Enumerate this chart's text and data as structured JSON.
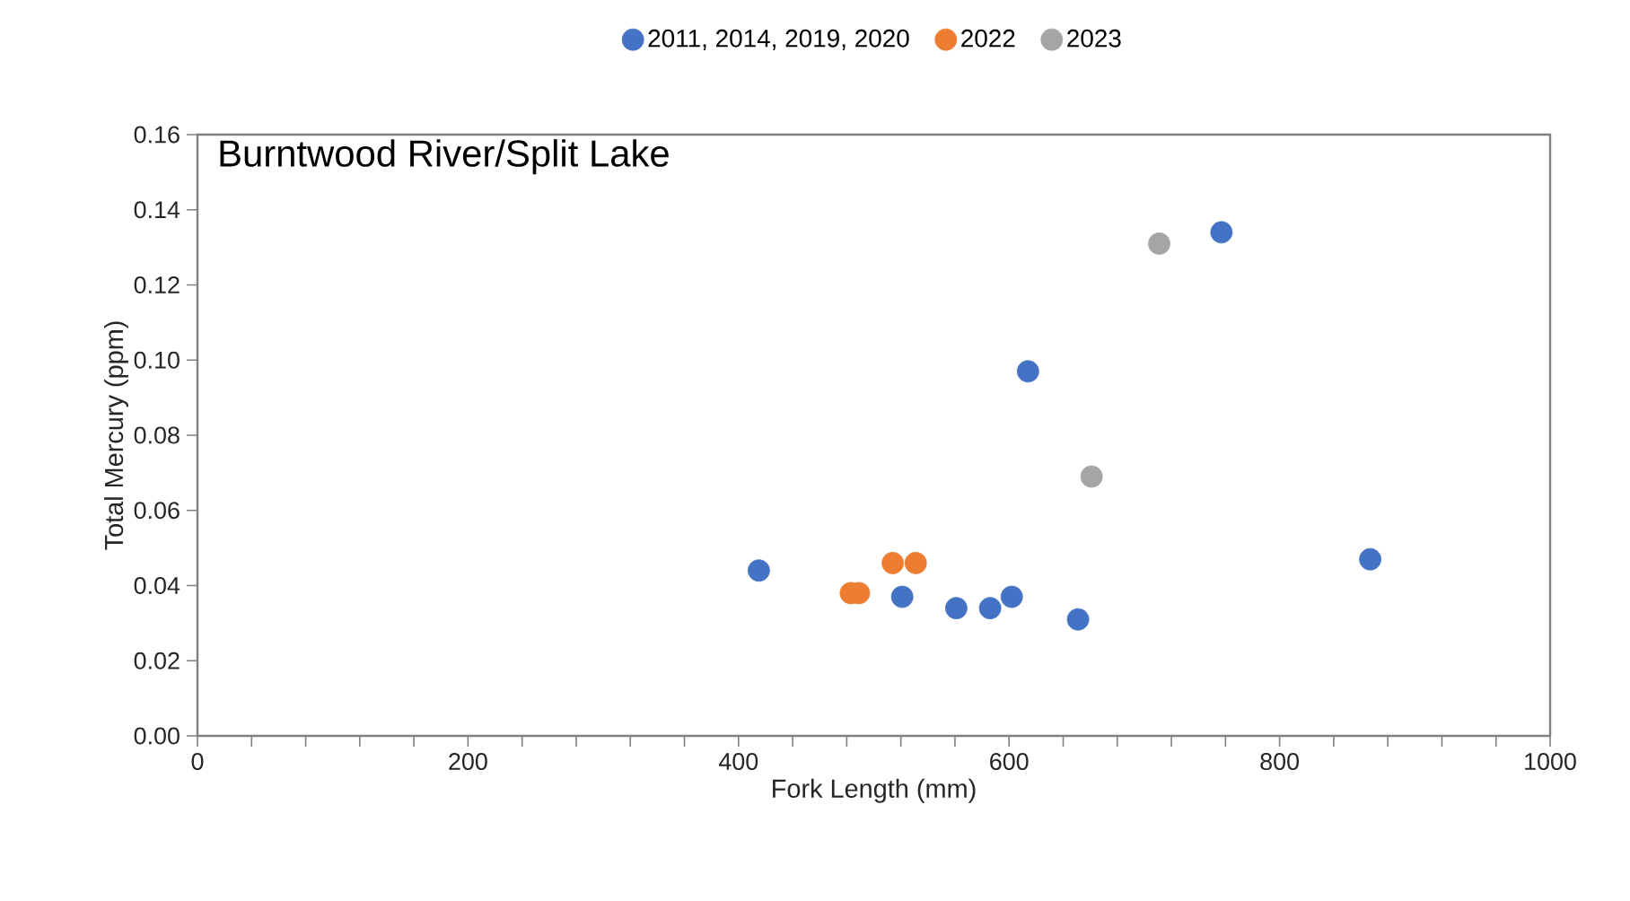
{
  "chart_data": {
    "type": "scatter",
    "title": "Burntwood River/Split Lake",
    "xlabel": "Fork Length (mm)",
    "ylabel": "Total Mercury (ppm)",
    "xlim": [
      0,
      1000
    ],
    "xticks": [
      0,
      200,
      400,
      600,
      800,
      1000
    ],
    "ylim": [
      0,
      0.16
    ],
    "yticks": [
      {
        "value": 0,
        "label": "0.00"
      },
      {
        "value": 0.02,
        "label": "0.02"
      },
      {
        "value": 0.04,
        "label": "0.04"
      },
      {
        "value": 0.06,
        "label": "0.06"
      },
      {
        "value": 0.08,
        "label": "0.08"
      },
      {
        "value": 0.1,
        "label": "0.10"
      },
      {
        "value": 0.12,
        "label": "0.12"
      },
      {
        "value": 0.14,
        "label": "0.14"
      },
      {
        "value": 0.16,
        "label": "0.16"
      }
    ],
    "marker": "circle",
    "legend": "top",
    "grid": false,
    "series": [
      {
        "name": "2011, 2014, 2019, 2020",
        "color": "#4472c4",
        "x": [
          415,
          521,
          561,
          586,
          602,
          651,
          614,
          757,
          867
        ],
        "values": [
          0.044,
          0.037,
          0.034,
          0.034,
          0.037,
          0.031,
          0.097,
          0.134,
          0.047
        ]
      },
      {
        "name": "2022",
        "color": "#ed7d31",
        "x": [
          483,
          489,
          514,
          531
        ],
        "values": [
          0.038,
          0.038,
          0.046,
          0.046
        ]
      },
      {
        "name": "2023",
        "color": "#a5a5a5",
        "x": [
          711,
          661
        ],
        "values": [
          0.131,
          0.069
        ]
      }
    ]
  }
}
